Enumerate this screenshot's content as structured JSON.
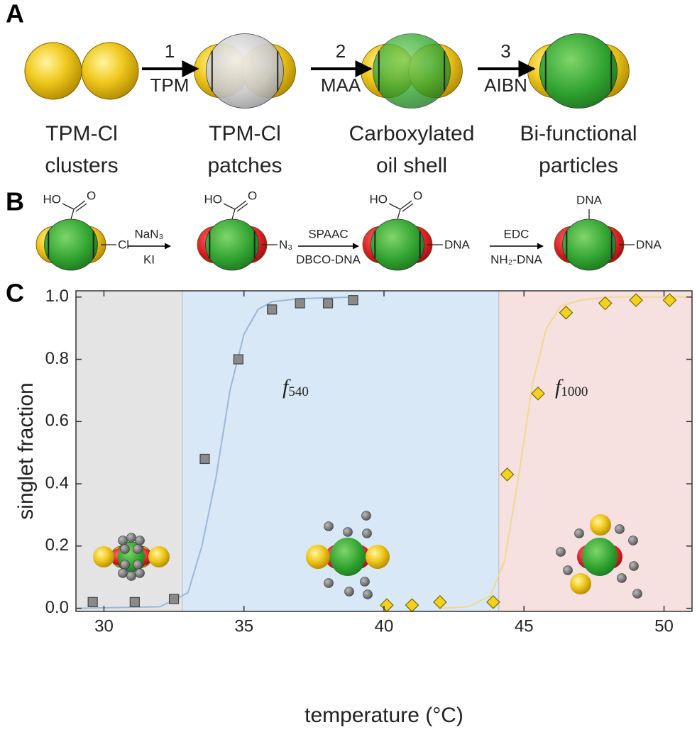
{
  "panel_a": {
    "label": "A",
    "steps": [
      {
        "number": "1",
        "reagent": "TPM"
      },
      {
        "number": "2",
        "reagent": "MAA"
      },
      {
        "number": "3",
        "reagent": "AIBN"
      }
    ],
    "captions": [
      [
        "TPM-Cl",
        "clusters"
      ],
      [
        "TPM-Cl",
        "patches"
      ],
      [
        "Carboxylated",
        "oil shell"
      ],
      [
        "Bi-functional",
        "particles"
      ]
    ]
  },
  "panel_b": {
    "label": "B",
    "hydroxyl": [
      "HO",
      "HO",
      "HO"
    ],
    "carbonyl": [
      "O",
      "O",
      "O"
    ],
    "end_groups": [
      "Cl",
      "N₃",
      "DNA",
      "DNA"
    ],
    "top_group": "DNA",
    "steps": [
      {
        "above": "NaN₃",
        "below": "KI"
      },
      {
        "above": "SPAAC",
        "below": "DBCO-DNA"
      },
      {
        "above": "EDC",
        "below": "NH₂-DNA"
      }
    ]
  },
  "chart_data": {
    "type": "scatter",
    "label": "C",
    "x_label": "temperature (°C)",
    "y_label": "singlet fraction",
    "xlim": [
      29,
      51
    ],
    "ylim": [
      -0.01,
      1.02
    ],
    "xticks": [
      30,
      35,
      40,
      45,
      50
    ],
    "yticks": [
      {
        "value": 0,
        "label": "0.0"
      },
      0.2,
      0.4,
      0.6,
      0.8,
      {
        "value": 1,
        "label": "1.0"
      }
    ],
    "regions": [
      {
        "start": 29,
        "end": 32.8,
        "color": "#e4e4e4"
      },
      {
        "start": 32.8,
        "end": 44.1,
        "color": "#d8e8f6"
      },
      {
        "start": 44.1,
        "end": 51,
        "color": "#f6e0e0"
      }
    ],
    "series": [
      {
        "marker": "square",
        "color": "#8a8a8a",
        "x": [
          29.6,
          31.1,
          32.5,
          33.6,
          34.8,
          36.0,
          37.0,
          38.0,
          38.9
        ],
        "values": [
          0.02,
          0.02,
          0.03,
          0.48,
          0.8,
          0.96,
          0.98,
          0.98,
          0.99
        ]
      },
      {
        "marker": "diamond",
        "color": "#f2d21e",
        "x": [
          40.1,
          41.0,
          42.0,
          43.9,
          44.4,
          45.5,
          46.5,
          47.9,
          49.0,
          50.2
        ],
        "values": [
          0.01,
          0.01,
          0.02,
          0.02,
          0.43,
          0.69,
          0.95,
          0.98,
          0.99,
          0.99
        ]
      },
      {
        "marker": "line",
        "color": "#9ab8d8",
        "x": [
          29,
          32,
          33,
          33.5,
          34,
          34.5,
          35,
          35.5,
          36,
          37,
          39
        ],
        "values": [
          0,
          0.005,
          0.05,
          0.2,
          0.42,
          0.7,
          0.88,
          0.96,
          0.985,
          0.995,
          1
        ]
      },
      {
        "marker": "line",
        "color": "#f2d890",
        "x": [
          42,
          43,
          43.8,
          44.3,
          44.8,
          45.3,
          45.8,
          46.3,
          47,
          48,
          51
        ],
        "values": [
          0,
          0.005,
          0.04,
          0.15,
          0.42,
          0.72,
          0.9,
          0.97,
          0.99,
          1,
          1
        ]
      }
    ],
    "annotations": [
      {
        "text": "f",
        "sub": "540"
      },
      {
        "text": "f",
        "sub": "1000"
      }
    ]
  }
}
